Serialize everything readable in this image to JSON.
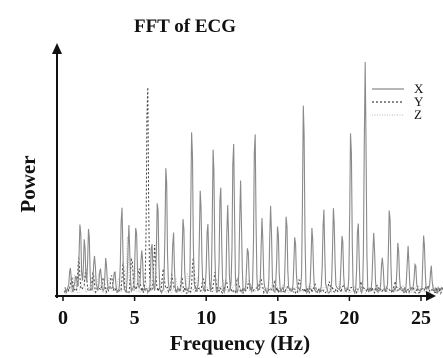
{
  "chart_data": {
    "type": "line",
    "title": "FFT of ECG",
    "xlabel": "Frequency (Hz)",
    "ylabel": "Power",
    "xlim": [
      0,
      26.5
    ],
    "ylim": [
      0,
      1.0
    ],
    "x_ticks": [
      0,
      5,
      10,
      15,
      20,
      25
    ],
    "grid": false,
    "legend_position": "top-right",
    "series": [
      {
        "name": "X",
        "color": "#8a8a8a",
        "dash": "solid",
        "peaks": [
          [
            0.5,
            0.1
          ],
          [
            0.9,
            0.07
          ],
          [
            1.2,
            0.3
          ],
          [
            1.5,
            0.22
          ],
          [
            1.8,
            0.27
          ],
          [
            2.2,
            0.15
          ],
          [
            2.6,
            0.1
          ],
          [
            3.0,
            0.14
          ],
          [
            3.6,
            0.08
          ],
          [
            4.1,
            0.36
          ],
          [
            4.6,
            0.27
          ],
          [
            5.1,
            0.29
          ],
          [
            5.5,
            0.18
          ],
          [
            6.2,
            0.22
          ],
          [
            6.6,
            0.4
          ],
          [
            7.2,
            0.55
          ],
          [
            7.7,
            0.25
          ],
          [
            8.4,
            0.32
          ],
          [
            9.0,
            0.7
          ],
          [
            9.6,
            0.45
          ],
          [
            10.1,
            0.3
          ],
          [
            10.5,
            0.62
          ],
          [
            11.0,
            0.45
          ],
          [
            11.5,
            0.37
          ],
          [
            11.9,
            0.66
          ],
          [
            12.4,
            0.47
          ],
          [
            12.9,
            0.2
          ],
          [
            13.4,
            0.7
          ],
          [
            13.9,
            0.3
          ],
          [
            14.5,
            0.36
          ],
          [
            15.0,
            0.28
          ],
          [
            15.6,
            0.33
          ],
          [
            16.2,
            0.25
          ],
          [
            16.8,
            0.82
          ],
          [
            17.4,
            0.28
          ],
          [
            18.2,
            0.35
          ],
          [
            18.9,
            0.36
          ],
          [
            19.5,
            0.25
          ],
          [
            20.1,
            0.7
          ],
          [
            20.6,
            0.3
          ],
          [
            21.1,
            1.0
          ],
          [
            21.7,
            0.25
          ],
          [
            22.3,
            0.15
          ],
          [
            22.8,
            0.37
          ],
          [
            23.4,
            0.2
          ],
          [
            24.1,
            0.18
          ],
          [
            24.6,
            0.12
          ],
          [
            25.2,
            0.25
          ],
          [
            25.7,
            0.1
          ]
        ]
      },
      {
        "name": "Y",
        "color": "#444444",
        "dash": "2,2",
        "peaks": [
          [
            0.6,
            0.05
          ],
          [
            1.1,
            0.15
          ],
          [
            1.6,
            0.1
          ],
          [
            2.1,
            0.08
          ],
          [
            2.8,
            0.06
          ],
          [
            3.4,
            0.07
          ],
          [
            4.2,
            0.12
          ],
          [
            4.8,
            0.15
          ],
          [
            5.3,
            0.1
          ],
          [
            5.9,
            0.9
          ],
          [
            6.4,
            0.2
          ],
          [
            7.0,
            0.1
          ],
          [
            7.6,
            0.07
          ],
          [
            8.3,
            0.05
          ],
          [
            9.1,
            0.15
          ],
          [
            9.8,
            0.06
          ],
          [
            10.6,
            0.08
          ],
          [
            11.4,
            0.05
          ],
          [
            12.2,
            0.06
          ],
          [
            13.0,
            0.04
          ],
          [
            13.8,
            0.05
          ],
          [
            14.8,
            0.04
          ],
          [
            15.7,
            0.03
          ],
          [
            16.5,
            0.05
          ],
          [
            17.6,
            0.03
          ],
          [
            18.6,
            0.04
          ],
          [
            19.6,
            0.03
          ],
          [
            20.8,
            0.03
          ],
          [
            22.0,
            0.02
          ],
          [
            23.2,
            0.03
          ],
          [
            24.4,
            0.02
          ],
          [
            25.5,
            0.02
          ]
        ]
      },
      {
        "name": "Z",
        "color": "#c4c4c4",
        "dash": "1,1.5",
        "peaks": [
          [
            0.8,
            0.06
          ],
          [
            1.4,
            0.08
          ],
          [
            2.0,
            0.05
          ],
          [
            2.5,
            0.07
          ],
          [
            3.2,
            0.05
          ],
          [
            3.9,
            0.06
          ],
          [
            4.5,
            0.25
          ],
          [
            5.0,
            0.12
          ],
          [
            5.7,
            0.07
          ],
          [
            6.3,
            0.1
          ],
          [
            6.9,
            0.06
          ],
          [
            7.9,
            0.05
          ],
          [
            8.7,
            0.07
          ],
          [
            9.4,
            0.05
          ],
          [
            10.3,
            0.04
          ],
          [
            11.2,
            0.04
          ],
          [
            12.0,
            0.03
          ],
          [
            12.8,
            0.04
          ],
          [
            13.6,
            0.03
          ],
          [
            14.6,
            0.03
          ],
          [
            15.4,
            0.03
          ],
          [
            16.3,
            0.02
          ],
          [
            17.2,
            0.03
          ],
          [
            18.4,
            0.02
          ],
          [
            19.3,
            0.03
          ],
          [
            20.4,
            0.02
          ],
          [
            21.5,
            0.02
          ],
          [
            22.5,
            0.02
          ],
          [
            23.7,
            0.02
          ],
          [
            24.8,
            0.02
          ],
          [
            25.8,
            0.02
          ]
        ]
      }
    ]
  }
}
